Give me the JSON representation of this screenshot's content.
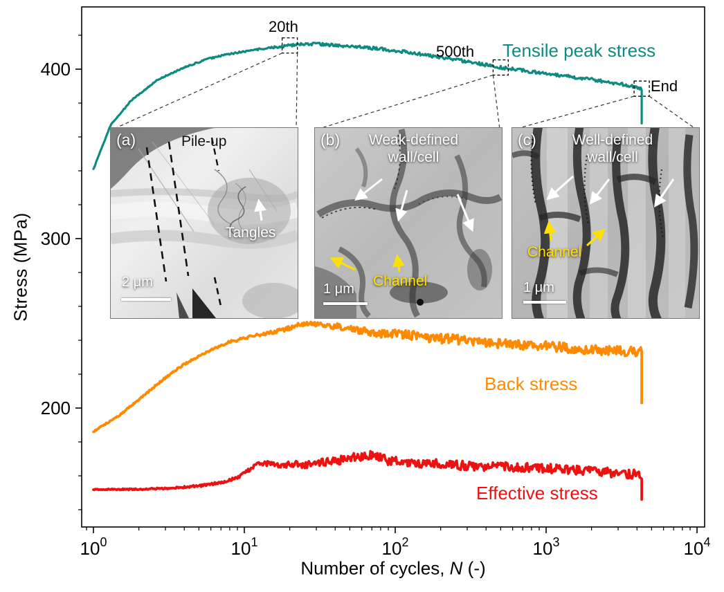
{
  "axes": {
    "ylabel": "Stress (MPa)",
    "xlabel_prefix": "Number of cycles, ",
    "xlabel_var": "N",
    "xlabel_suffix": " (-)",
    "x_tick_base": "10",
    "x_tick_exponents": [
      "0",
      "1",
      "2",
      "3",
      "4"
    ],
    "y_tick_labels": [
      "200",
      "300",
      "400"
    ],
    "y_tick_values": [
      200,
      300,
      400
    ]
  },
  "chart_data": {
    "type": "line",
    "title": "",
    "xlabel": "Number of cycles, N (-)",
    "ylabel": "Stress (MPa)",
    "x_scale": "log",
    "x_range_log10": [
      -0.08,
      4.05
    ],
    "y_range": [
      130,
      437
    ],
    "grid": false,
    "legend_position": "inline-labels",
    "series": [
      {
        "name": "Tensile peak stress",
        "color": "#0e8a80",
        "width": 3.2,
        "points": [
          [
            1,
            341
          ],
          [
            1.3,
            367
          ],
          [
            1.8,
            382
          ],
          [
            2.7,
            394
          ],
          [
            4,
            401
          ],
          [
            5.7,
            406
          ],
          [
            8,
            409
          ],
          [
            12,
            411.5
          ],
          [
            18,
            413.5
          ],
          [
            25,
            415
          ],
          [
            35,
            414.5
          ],
          [
            50,
            413.5
          ],
          [
            80,
            412
          ],
          [
            120,
            410
          ],
          [
            200,
            407
          ],
          [
            300,
            404.5
          ],
          [
            500,
            401
          ],
          [
            800,
            398.5
          ],
          [
            1200,
            396.5
          ],
          [
            2000,
            394
          ],
          [
            3000,
            391.5
          ],
          [
            4300,
            388.5
          ]
        ],
        "noise": [
          [
            1,
            0.3
          ],
          [
            10,
            0.5
          ],
          [
            30,
            0.9
          ],
          [
            4300,
            1.0
          ]
        ],
        "tail": [
          [
            4300,
            368
          ]
        ]
      },
      {
        "name": "Back stress",
        "color": "#ff8a00",
        "width": 3.8,
        "points": [
          [
            1,
            186
          ],
          [
            1.5,
            196
          ],
          [
            2,
            205
          ],
          [
            3,
            218
          ],
          [
            4,
            226
          ],
          [
            6,
            234
          ],
          [
            8,
            239
          ],
          [
            12,
            243
          ],
          [
            18,
            246
          ],
          [
            25,
            250
          ],
          [
            35,
            249
          ],
          [
            50,
            247
          ],
          [
            80,
            244
          ],
          [
            120,
            243
          ],
          [
            200,
            241
          ],
          [
            300,
            240
          ],
          [
            500,
            238
          ],
          [
            800,
            237
          ],
          [
            1200,
            236
          ],
          [
            2000,
            234.5
          ],
          [
            3000,
            233.5
          ],
          [
            4300,
            233
          ]
        ],
        "noise": [
          [
            1,
            0.4
          ],
          [
            10,
            0.8
          ],
          [
            30,
            1.5
          ],
          [
            80,
            2.8
          ],
          [
            4300,
            3.0
          ]
        ],
        "tail": [
          [
            4300,
            203
          ]
        ]
      },
      {
        "name": "Effective stress",
        "color": "#ed1111",
        "width": 3.8,
        "points": [
          [
            1,
            152
          ],
          [
            2,
            152
          ],
          [
            3,
            152.5
          ],
          [
            5,
            154
          ],
          [
            7,
            156
          ],
          [
            9,
            159
          ],
          [
            11,
            164
          ],
          [
            13,
            168
          ],
          [
            16,
            166
          ],
          [
            20,
            166.5
          ],
          [
            30,
            167
          ],
          [
            40,
            169
          ],
          [
            55,
            171
          ],
          [
            70,
            172
          ],
          [
            90,
            169
          ],
          [
            120,
            168
          ],
          [
            200,
            167
          ],
          [
            300,
            166
          ],
          [
            500,
            165.5
          ],
          [
            800,
            165
          ],
          [
            1200,
            164
          ],
          [
            2000,
            163
          ],
          [
            3000,
            161.5
          ],
          [
            4300,
            160.5
          ]
        ],
        "noise": [
          [
            1,
            0.3
          ],
          [
            9,
            0.8
          ],
          [
            13,
            1.6
          ],
          [
            40,
            2.6
          ],
          [
            4300,
            2.8
          ]
        ],
        "tail": [
          [
            4300,
            146
          ]
        ]
      }
    ],
    "annotations": [
      {
        "label": "20th",
        "at_N": 20
      },
      {
        "label": "500th",
        "at_N": 500
      },
      {
        "label": "End",
        "at_N": 4300
      }
    ]
  },
  "insets": {
    "a": {
      "letter": "(a)",
      "pileup": "Pile-up",
      "tangles": "Tangles",
      "scale": "2 μm"
    },
    "b": {
      "letter": "(b)",
      "wall_line1": "Weak-defined",
      "wall_line2": "wall/cell",
      "channel": "Channel",
      "scale": "1 μm"
    },
    "c": {
      "letter": "(c)",
      "wall_line1": "Well-defined",
      "wall_line2": "wall/cell",
      "channel": "Channel",
      "scale": "1 μm"
    }
  },
  "colors": {
    "tensile": "#0e8a80",
    "back": "#ff8a00",
    "effective": "#ed1111",
    "axis": "#000000",
    "channel_text": "#ffe100",
    "arrow_white": "#ffffff"
  }
}
